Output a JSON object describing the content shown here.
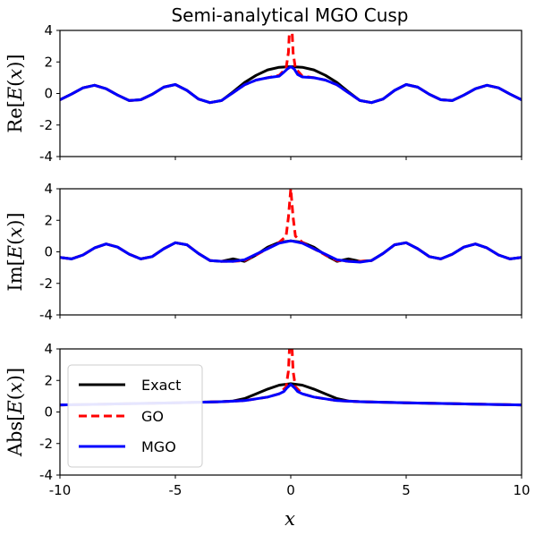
{
  "title": "Semi-analytical MGO Cusp",
  "colors": {
    "Exact": "#000000",
    "GO": "#ff0000",
    "MGO": "#0000ff"
  },
  "legend": {
    "location": "lower-left of bottom panel",
    "entries": [
      {
        "label": "Exact",
        "color": "#000000",
        "style": "solid"
      },
      {
        "label": "GO",
        "color": "#ff0000",
        "style": "dashed"
      },
      {
        "label": "MGO",
        "color": "#0000ff",
        "style": "solid"
      }
    ]
  },
  "chart_data": [
    {
      "type": "line",
      "ylabel": "Re[E(x)]",
      "xlim": [
        -10,
        10
      ],
      "ylim": [
        -4,
        4
      ],
      "xticks": [
        -10,
        -5,
        0,
        5,
        10
      ],
      "yticks": [
        -4,
        -2,
        0,
        2,
        4
      ],
      "xticklabels_shown": false,
      "series": [
        {
          "name": "Exact",
          "style": "solid",
          "color": "#000000",
          "x": [
            -10,
            -9.5,
            -9,
            -8.5,
            -8,
            -7.5,
            -7,
            -6.5,
            -6,
            -5.5,
            -5,
            -4.5,
            -4,
            -3.5,
            -3,
            -2.5,
            -2,
            -1.5,
            -1,
            -0.5,
            0,
            0.5,
            1,
            1.5,
            2,
            2.5,
            3,
            3.5,
            4,
            4.5,
            5,
            5.5,
            6,
            6.5,
            7,
            7.5,
            8,
            8.5,
            9,
            9.5,
            10
          ],
          "y": [
            -0.4,
            -0.04,
            0.36,
            0.52,
            0.3,
            -0.1,
            -0.45,
            -0.4,
            -0.05,
            0.4,
            0.57,
            0.2,
            -0.35,
            -0.58,
            -0.45,
            0.1,
            0.7,
            1.15,
            1.5,
            1.66,
            1.7,
            1.66,
            1.5,
            1.15,
            0.7,
            0.1,
            -0.45,
            -0.58,
            -0.35,
            0.2,
            0.57,
            0.4,
            -0.05,
            -0.4,
            -0.45,
            -0.1,
            0.3,
            0.52,
            0.36,
            -0.04,
            -0.4
          ]
        },
        {
          "name": "GO",
          "style": "dashed",
          "color": "#ff0000",
          "x": [
            -10,
            -9.5,
            -9,
            -8.5,
            -8,
            -7.5,
            -7,
            -6.5,
            -6,
            -5.5,
            -5,
            -4.5,
            -4,
            -3.5,
            -3,
            -2.5,
            -2,
            -1.5,
            -1,
            -0.5,
            -0.2,
            -0.1,
            -0.05,
            0,
            0.05,
            0.1,
            0.2,
            0.5,
            1,
            1.5,
            2,
            2.5,
            3,
            3.5,
            4,
            4.5,
            5,
            5.5,
            6,
            6.5,
            7,
            7.5,
            8,
            8.5,
            9,
            9.5,
            10
          ],
          "y": [
            -0.4,
            -0.04,
            0.36,
            0.52,
            0.3,
            -0.1,
            -0.45,
            -0.4,
            -0.05,
            0.4,
            0.57,
            0.2,
            -0.35,
            -0.58,
            -0.45,
            0.05,
            0.55,
            0.85,
            1.0,
            1.15,
            1.6,
            2.6,
            4.2,
            4.2,
            4.2,
            2.6,
            1.6,
            1.1,
            1.0,
            0.85,
            0.55,
            0.05,
            -0.45,
            -0.58,
            -0.35,
            0.2,
            0.57,
            0.4,
            -0.05,
            -0.4,
            -0.45,
            -0.1,
            0.3,
            0.52,
            0.36,
            -0.04,
            -0.4
          ]
        },
        {
          "name": "MGO",
          "style": "solid",
          "color": "#0000ff",
          "x": [
            -10,
            -9.5,
            -9,
            -8.5,
            -8,
            -7.5,
            -7,
            -6.5,
            -6,
            -5.5,
            -5,
            -4.5,
            -4,
            -3.5,
            -3,
            -2.5,
            -2,
            -1.5,
            -1,
            -0.5,
            -0.3,
            -0.15,
            0,
            0.15,
            0.3,
            0.5,
            1,
            1.5,
            2,
            2.5,
            3,
            3.5,
            4,
            4.5,
            5,
            5.5,
            6,
            6.5,
            7,
            7.5,
            8,
            8.5,
            9,
            9.5,
            10
          ],
          "y": [
            -0.4,
            -0.04,
            0.36,
            0.52,
            0.3,
            -0.1,
            -0.45,
            -0.4,
            -0.05,
            0.4,
            0.57,
            0.2,
            -0.35,
            -0.58,
            -0.45,
            0.05,
            0.55,
            0.85,
            1.0,
            1.1,
            1.35,
            1.55,
            1.7,
            1.55,
            1.2,
            1.05,
            1.0,
            0.85,
            0.55,
            0.05,
            -0.45,
            -0.58,
            -0.35,
            0.2,
            0.57,
            0.4,
            -0.05,
            -0.4,
            -0.45,
            -0.1,
            0.3,
            0.52,
            0.36,
            -0.04,
            -0.4
          ]
        }
      ]
    },
    {
      "type": "line",
      "ylabel": "Im[E(x)]",
      "xlim": [
        -10,
        10
      ],
      "ylim": [
        -4,
        4
      ],
      "xticks": [
        -10,
        -5,
        0,
        5,
        10
      ],
      "yticks": [
        -4,
        -2,
        0,
        2,
        4
      ],
      "xticklabels_shown": false,
      "series": [
        {
          "name": "Exact",
          "style": "solid",
          "color": "#000000",
          "x": [
            -10,
            -9.5,
            -9,
            -8.5,
            -8,
            -7.5,
            -7,
            -6.5,
            -6,
            -5.5,
            -5,
            -4.5,
            -4,
            -3.5,
            -3,
            -2.5,
            -2,
            -1.5,
            -1,
            -0.5,
            0,
            0.5,
            1,
            1.5,
            2,
            2.5,
            3,
            3.5,
            4,
            4.5,
            5,
            5.5,
            6,
            6.5,
            7,
            7.5,
            8,
            8.5,
            9,
            9.5,
            10
          ],
          "y": [
            -0.35,
            -0.45,
            -0.2,
            0.25,
            0.5,
            0.3,
            -0.15,
            -0.45,
            -0.3,
            0.2,
            0.58,
            0.45,
            -0.1,
            -0.55,
            -0.6,
            -0.45,
            -0.6,
            -0.2,
            0.3,
            0.6,
            0.7,
            0.6,
            0.3,
            -0.2,
            -0.6,
            -0.45,
            -0.6,
            -0.55,
            -0.1,
            0.45,
            0.58,
            0.2,
            -0.3,
            -0.45,
            -0.15,
            0.3,
            0.5,
            0.25,
            -0.2,
            -0.45,
            -0.35
          ]
        },
        {
          "name": "GO",
          "style": "dashed",
          "color": "#ff0000",
          "x": [
            -10,
            -9.5,
            -9,
            -8.5,
            -8,
            -7.5,
            -7,
            -6.5,
            -6,
            -5.5,
            -5,
            -4.5,
            -4,
            -3.5,
            -3,
            -2.5,
            -2,
            -1.5,
            -1,
            -0.5,
            -0.2,
            -0.1,
            0,
            0.1,
            0.2,
            0.5,
            1,
            1.5,
            2,
            2.5,
            3,
            3.5,
            4,
            4.5,
            5,
            5.5,
            6,
            6.5,
            7,
            7.5,
            8,
            8.5,
            9,
            9.5,
            10
          ],
          "y": [
            -0.35,
            -0.45,
            -0.2,
            0.25,
            0.5,
            0.3,
            -0.15,
            -0.45,
            -0.3,
            0.2,
            0.58,
            0.45,
            -0.1,
            -0.55,
            -0.6,
            -0.6,
            -0.55,
            -0.2,
            0.2,
            0.6,
            1.0,
            2.2,
            4.0,
            2.2,
            1.0,
            0.6,
            0.2,
            -0.2,
            -0.55,
            -0.6,
            -0.6,
            -0.55,
            -0.1,
            0.45,
            0.58,
            0.2,
            -0.3,
            -0.45,
            -0.15,
            0.3,
            0.5,
            0.25,
            -0.2,
            -0.45,
            -0.35
          ]
        },
        {
          "name": "MGO",
          "style": "solid",
          "color": "#0000ff",
          "x": [
            -10,
            -9.5,
            -9,
            -8.5,
            -8,
            -7.5,
            -7,
            -6.5,
            -6,
            -5.5,
            -5,
            -4.5,
            -4,
            -3.5,
            -3,
            -2.5,
            -2,
            -1.5,
            -1,
            -0.5,
            0,
            0.5,
            1,
            1.5,
            2,
            2.5,
            3,
            3.5,
            4,
            4.5,
            5,
            5.5,
            6,
            6.5,
            7,
            7.5,
            8,
            8.5,
            9,
            9.5,
            10
          ],
          "y": [
            -0.35,
            -0.45,
            -0.2,
            0.25,
            0.5,
            0.3,
            -0.15,
            -0.45,
            -0.3,
            0.2,
            0.58,
            0.45,
            -0.1,
            -0.55,
            -0.6,
            -0.6,
            -0.5,
            -0.15,
            0.2,
            0.55,
            0.7,
            0.55,
            0.2,
            -0.15,
            -0.5,
            -0.6,
            -0.65,
            -0.55,
            -0.1,
            0.45,
            0.58,
            0.2,
            -0.3,
            -0.45,
            -0.15,
            0.3,
            0.5,
            0.25,
            -0.2,
            -0.45,
            -0.35
          ]
        }
      ]
    },
    {
      "type": "line",
      "ylabel": "Abs[E(x)]",
      "xlabel": "x",
      "xlim": [
        -10,
        10
      ],
      "ylim": [
        -4,
        4
      ],
      "xticks": [
        -10,
        -5,
        0,
        5,
        10
      ],
      "yticks": [
        -4,
        -2,
        0,
        2,
        4
      ],
      "xticklabels_shown": true,
      "series": [
        {
          "name": "Exact",
          "style": "solid",
          "color": "#000000",
          "x": [
            -10,
            -8,
            -6,
            -5,
            -4,
            -3,
            -2.5,
            -2,
            -1.5,
            -1,
            -0.5,
            0,
            0.5,
            1,
            1.5,
            2,
            2.5,
            3,
            4,
            5,
            6,
            8,
            10
          ],
          "y": [
            0.45,
            0.5,
            0.55,
            0.58,
            0.62,
            0.65,
            0.7,
            0.85,
            1.15,
            1.45,
            1.7,
            1.8,
            1.7,
            1.45,
            1.15,
            0.85,
            0.7,
            0.65,
            0.62,
            0.58,
            0.55,
            0.5,
            0.45
          ]
        },
        {
          "name": "GO",
          "style": "dashed",
          "color": "#ff0000",
          "x": [
            -10,
            -8,
            -6,
            -5,
            -4,
            -3,
            -2,
            -1,
            -0.5,
            -0.2,
            -0.1,
            -0.05,
            0,
            0.05,
            0.1,
            0.2,
            0.5,
            1,
            2,
            3,
            4,
            5,
            6,
            8,
            10
          ],
          "y": [
            0.45,
            0.5,
            0.55,
            0.58,
            0.62,
            0.65,
            0.72,
            0.95,
            1.15,
            1.6,
            2.6,
            4.2,
            4.2,
            4.2,
            2.6,
            1.6,
            1.15,
            0.95,
            0.72,
            0.65,
            0.62,
            0.58,
            0.55,
            0.5,
            0.45
          ]
        },
        {
          "name": "MGO",
          "style": "solid",
          "color": "#0000ff",
          "x": [
            -10,
            -8,
            -6,
            -5,
            -4,
            -3,
            -2,
            -1,
            -0.5,
            -0.3,
            -0.15,
            0,
            0.15,
            0.3,
            0.5,
            1,
            2,
            3,
            4,
            5,
            6,
            8,
            10
          ],
          "y": [
            0.45,
            0.5,
            0.55,
            0.58,
            0.62,
            0.65,
            0.72,
            0.95,
            1.15,
            1.3,
            1.55,
            1.75,
            1.55,
            1.3,
            1.15,
            0.95,
            0.72,
            0.65,
            0.62,
            0.58,
            0.55,
            0.5,
            0.45
          ]
        }
      ]
    }
  ]
}
